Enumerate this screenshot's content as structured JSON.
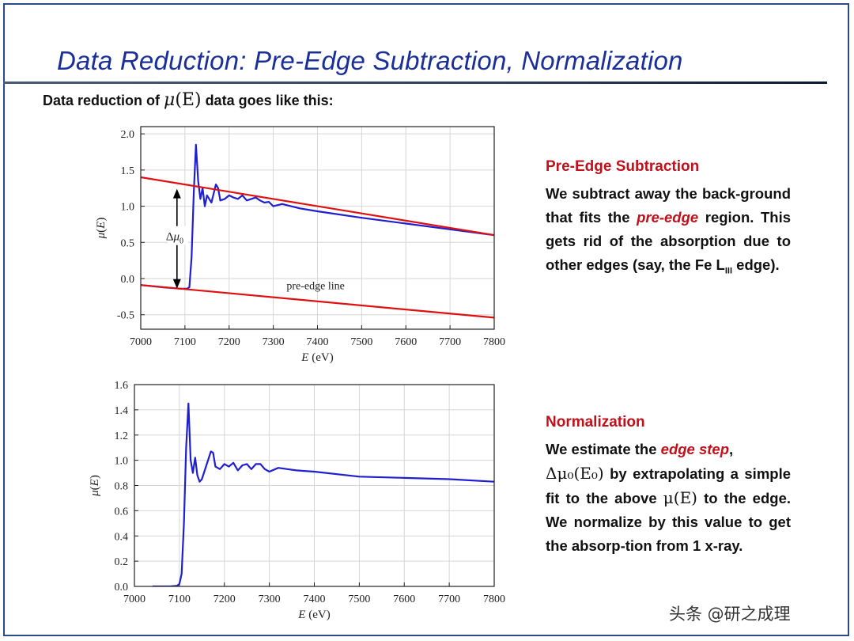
{
  "slide": {
    "title": "Data Reduction: Pre-Edge Subtraction, Normalization",
    "subtitle_before": "Data reduction of ",
    "subtitle_math_mu": "μ",
    "subtitle_math_E": "(E)",
    "subtitle_after": " data goes like this:",
    "watermark": "头条 @研之成理"
  },
  "panels": {
    "pre_edge": {
      "heading": "Pre-Edge Subtraction",
      "text_1": "We subtract away the back-ground that fits the ",
      "emphasis": "pre-edge",
      "text_2": " region.   This gets rid of the absorption due to other edges (say, the Fe L",
      "subscript": "III",
      "text_3": " edge)."
    },
    "normalization": {
      "heading": "Normalization",
      "text_1": "We estimate the ",
      "emphasis": "edge step",
      "text_2": ",",
      "math": "Δμ₀(E₀)",
      "text_3": " by extrapolating a simple fit to the above ",
      "math_2": "μ(E)",
      "text_4": " to the edge. We normalize by this value to get the absorp-tion from 1 x-ray."
    }
  },
  "chart_data": [
    {
      "type": "line",
      "xlabel": "E (eV)",
      "ylabel": "μ(E)",
      "xlim": [
        7000,
        7800
      ],
      "ylim": [
        -0.7,
        2.1
      ],
      "xticks": [
        7000,
        7100,
        7200,
        7300,
        7400,
        7500,
        7600,
        7700,
        7800
      ],
      "yticks": [
        -0.5,
        0.0,
        0.5,
        1.0,
        1.5,
        2.0
      ],
      "grid": true,
      "series": [
        {
          "color": "#1f1fd0",
          "x": [
            7000,
            7050,
            7090,
            7105,
            7110,
            7115,
            7120,
            7125,
            7130,
            7135,
            7140,
            7145,
            7150,
            7160,
            7170,
            7175,
            7180,
            7190,
            7200,
            7210,
            7220,
            7230,
            7240,
            7250,
            7260,
            7270,
            7280,
            7290,
            7300,
            7320,
            7340,
            7360,
            7400,
            7500,
            7600,
            7700,
            7800
          ],
          "y": [
            -0.09,
            -0.12,
            -0.14,
            -0.14,
            -0.12,
            0.3,
            1.2,
            1.85,
            1.35,
            1.1,
            1.25,
            1.0,
            1.15,
            1.05,
            1.3,
            1.25,
            1.08,
            1.1,
            1.15,
            1.12,
            1.1,
            1.15,
            1.08,
            1.1,
            1.12,
            1.08,
            1.05,
            1.06,
            1.0,
            1.03,
            1.0,
            0.97,
            0.93,
            0.84,
            0.76,
            0.68,
            0.6
          ]
        },
        {
          "color": "#e01010",
          "x": [
            7000,
            7800
          ],
          "y": [
            1.4,
            0.6
          ]
        },
        {
          "color": "#e01010",
          "x": [
            7000,
            7800
          ],
          "y": [
            -0.09,
            -0.54
          ]
        }
      ],
      "annotations": [
        {
          "text": "pre-edge line",
          "x": 7330,
          "y": -0.15
        },
        {
          "text": "Δμ₀",
          "x": 7075,
          "y": 0.55
        }
      ]
    },
    {
      "type": "line",
      "xlabel": "E (eV)",
      "ylabel": "μ(E)",
      "xlim": [
        7000,
        7800
      ],
      "ylim": [
        0.0,
        1.6
      ],
      "xticks": [
        7000,
        7100,
        7200,
        7300,
        7400,
        7500,
        7600,
        7700,
        7800
      ],
      "yticks": [
        0.0,
        0.2,
        0.4,
        0.6,
        0.8,
        1.0,
        1.2,
        1.4,
        1.6
      ],
      "grid": true,
      "series": [
        {
          "color": "#1f1fd0",
          "x": [
            7040,
            7080,
            7095,
            7100,
            7105,
            7110,
            7115,
            7120,
            7125,
            7130,
            7135,
            7140,
            7145,
            7150,
            7160,
            7170,
            7175,
            7180,
            7190,
            7200,
            7210,
            7220,
            7230,
            7240,
            7250,
            7260,
            7270,
            7280,
            7290,
            7300,
            7320,
            7340,
            7360,
            7400,
            7500,
            7600,
            7700,
            7800
          ],
          "y": [
            0.0,
            0.0,
            0.005,
            0.02,
            0.1,
            0.5,
            1.1,
            1.45,
            1.0,
            0.9,
            1.02,
            0.88,
            0.83,
            0.85,
            0.96,
            1.07,
            1.06,
            0.95,
            0.93,
            0.97,
            0.95,
            0.98,
            0.92,
            0.96,
            0.97,
            0.93,
            0.97,
            0.97,
            0.93,
            0.91,
            0.94,
            0.93,
            0.92,
            0.91,
            0.87,
            0.86,
            0.85,
            0.83
          ]
        }
      ],
      "annotations": []
    }
  ]
}
